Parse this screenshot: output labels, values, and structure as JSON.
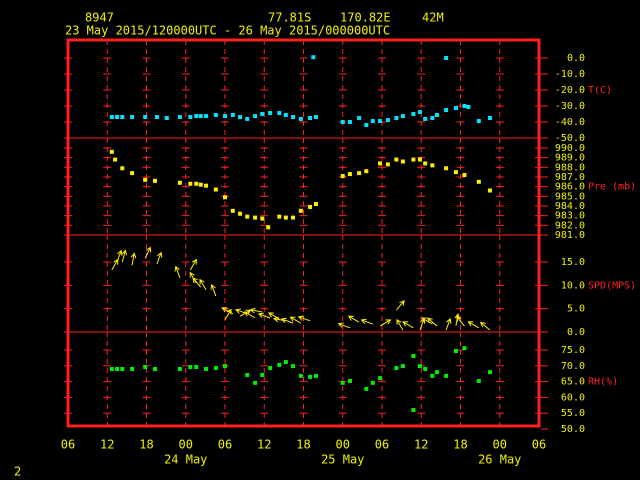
{
  "header": {
    "station": "8947",
    "lat": "77.81S",
    "lon": "170.82E",
    "elev": "42M",
    "period": "23 May 2015/120000UTC - 26 May 2015/000000UTC"
  },
  "footer": "2",
  "chart_data": [
    {
      "type": "scatter",
      "ylabel": "T(C)",
      "color": "#00e5ff",
      "xlim": [
        0,
        72
      ],
      "ylim": [
        -50,
        11.25
      ],
      "yticks": [
        {
          "value": 0,
          "label": "0.0"
        },
        {
          "value": -10,
          "label": "-10.0"
        },
        {
          "value": -20,
          "label": "-20.0"
        },
        {
          "value": -30,
          "label": "-30.0"
        },
        {
          "value": -40,
          "label": "-40.0"
        },
        {
          "value": -50,
          "label": "-50.0"
        }
      ],
      "x": [
        6.7,
        7.5,
        8.3,
        9.8,
        11.8,
        13.6,
        15.1,
        17.1,
        18.7,
        19.6,
        20.3,
        21.1,
        22.6,
        24.0,
        25.2,
        26.3,
        27.4,
        28.6,
        29.7,
        30.9,
        32.3,
        33.3,
        34.4,
        35.6,
        37.0,
        37.9,
        37.5,
        42.0,
        43.1,
        44.5,
        45.6,
        46.6,
        47.7,
        48.9,
        50.2,
        51.2,
        52.8,
        53.8,
        54.6,
        55.7,
        56.4,
        57.8,
        59.3,
        60.6,
        61.2,
        62.8,
        64.5,
        57.8
      ],
      "values": [
        -36.9,
        -36.9,
        -36.9,
        -36.9,
        -36.9,
        -36.9,
        -37.5,
        -36.9,
        -36.9,
        -36.3,
        -36.3,
        -36.3,
        -35.6,
        -36.3,
        -35.6,
        -36.9,
        -38.1,
        -36.3,
        -35.0,
        -34.4,
        -34.4,
        -35.6,
        -36.9,
        -38.1,
        -37.5,
        -36.9,
        0.5,
        -40,
        -40,
        -37.5,
        -41.9,
        -39.4,
        -39.4,
        -38.8,
        -37.5,
        -36.3,
        -35,
        -33.8,
        -38.1,
        -37.5,
        -35.6,
        -32.5,
        -31.3,
        -30,
        -30.6,
        -39.4,
        -37.5,
        0
      ]
    },
    {
      "type": "scatter",
      "ylabel": "Pre (mb)",
      "color": "#ffee00",
      "xlim": [
        0,
        72
      ],
      "ylim": [
        981,
        991.03
      ],
      "yticks": [
        {
          "value": 990,
          "label": "990.0"
        },
        {
          "value": 989,
          "label": "989.0"
        },
        {
          "value": 988,
          "label": "988.0"
        },
        {
          "value": 987,
          "label": "987.0"
        },
        {
          "value": 986,
          "label": "986.0"
        },
        {
          "value": 985,
          "label": "985.0"
        },
        {
          "value": 984,
          "label": "984.0"
        },
        {
          "value": 983,
          "label": "983.0"
        },
        {
          "value": 982,
          "label": "982.0"
        },
        {
          "value": 981,
          "label": "981.0"
        }
      ],
      "x": [
        6.7,
        7.2,
        8.3,
        9.8,
        11.8,
        13.3,
        17.1,
        18.7,
        19.6,
        20.3,
        21.1,
        22.6,
        24.0,
        25.2,
        26.3,
        27.4,
        28.6,
        29.7,
        30.6,
        32.3,
        33.3,
        34.4,
        35.6,
        37.0,
        37.9,
        42.0,
        43.1,
        44.5,
        45.6,
        47.7,
        48.9,
        50.2,
        51.2,
        52.8,
        53.8,
        54.6,
        55.7,
        57.8,
        59.3,
        60.6,
        62.8,
        64.5
      ],
      "values": [
        989.6,
        988.8,
        987.9,
        987.4,
        986.7,
        986.6,
        986.4,
        986.3,
        986.3,
        986.2,
        986.1,
        985.7,
        984.9,
        983.5,
        983.2,
        982.9,
        982.8,
        982.7,
        981.8,
        982.9,
        982.8,
        982.8,
        983.5,
        983.9,
        984.2,
        987.1,
        987.3,
        987.4,
        987.6,
        988.4,
        988.3,
        988.8,
        988.6,
        988.8,
        988.8,
        988.4,
        988.2,
        987.9,
        987.5,
        987.2,
        986.5,
        985.6
      ]
    },
    {
      "type": "vector",
      "ylabel": "SPD(MPS)",
      "color": "#ffee00",
      "xlim": [
        0,
        72
      ],
      "ylim": [
        0,
        20.79
      ],
      "yticks": [
        {
          "value": 15,
          "label": "15.0"
        },
        {
          "value": 10,
          "label": "10.0"
        },
        {
          "value": 5,
          "label": "5.0"
        },
        {
          "value": 0,
          "label": "0.0"
        }
      ],
      "x": [
        6.7,
        7.5,
        8.3,
        9.8,
        11.8,
        13.6,
        17.1,
        18.7,
        19.6,
        20.3,
        21.1,
        22.6,
        24.0,
        25.2,
        26.3,
        27.4,
        28.6,
        29.7,
        30.9,
        32.3,
        33.3,
        34.4,
        35.6,
        37.0,
        43.1,
        44.5,
        46.6,
        47.7,
        50.2,
        51.2,
        52.8,
        53.8,
        55.7,
        56.4,
        57.8,
        59.3,
        60.6,
        62.8,
        64.5
      ],
      "values": [
        13.3,
        15,
        15,
        14.3,
        15.8,
        14.6,
        11.6,
        13.3,
        10.5,
        9.6,
        9,
        7.7,
        2.6,
        3.9,
        3.4,
        3.9,
        3,
        4.3,
        3,
        2.8,
        2.4,
        1.9,
        1.9,
        2.4,
        0.9,
        2.1,
        1.7,
        1.3,
        4.7,
        0.4,
        0.9,
        0.4,
        1.7,
        1.3,
        0.4,
        1.3,
        1.3,
        0.9,
        0.4
      ],
      "direction": [
        30,
        20,
        15,
        10,
        25,
        20,
        340,
        30,
        330,
        320,
        330,
        340,
        30,
        300,
        60,
        290,
        300,
        280,
        290,
        300,
        280,
        290,
        300,
        290,
        290,
        300,
        290,
        60,
        40,
        330,
        300,
        20,
        300,
        310,
        20,
        10,
        320,
        300,
        310
      ]
    },
    {
      "type": "scatter",
      "ylabel": "RH(%)",
      "color": "#00ee00",
      "xlim": [
        0,
        72
      ],
      "ylim": [
        50.95,
        80.7
      ],
      "yticks": [
        {
          "value": 75,
          "label": "75.0"
        },
        {
          "value": 70,
          "label": "70.0"
        },
        {
          "value": 65,
          "label": "65.0"
        },
        {
          "value": 60,
          "label": "60.0"
        },
        {
          "value": 55,
          "label": "55.0"
        },
        {
          "value": 50,
          "label": "50.0"
        }
      ],
      "x": [
        6.7,
        7.5,
        8.3,
        9.8,
        11.8,
        13.3,
        17.1,
        18.7,
        19.6,
        21.1,
        22.6,
        24.0,
        27.4,
        28.6,
        29.7,
        30.9,
        32.3,
        33.3,
        34.4,
        35.6,
        37.0,
        37.9,
        42.0,
        43.1,
        45.6,
        46.6,
        47.7,
        50.2,
        51.2,
        52.8,
        53.8,
        54.6,
        55.7,
        56.4,
        57.8,
        59.3,
        60.6,
        62.8,
        64.5,
        52.8
      ],
      "values": [
        69.0,
        69.0,
        69.0,
        69.0,
        69.6,
        69.0,
        69.0,
        69.6,
        69.6,
        69.0,
        69.3,
        69.9,
        67.1,
        64.6,
        67.1,
        69.3,
        70.3,
        71.2,
        69.9,
        66.8,
        66.5,
        66.8,
        64.6,
        65.2,
        62.7,
        64.6,
        66.1,
        69.3,
        69.9,
        73.1,
        69.9,
        69.0,
        66.8,
        68.0,
        66.8,
        74.7,
        75.6,
        65.2,
        68.0,
        56.0
      ],
      "xticks": [
        {
          "value": 0,
          "label": "06"
        },
        {
          "value": 6,
          "label": "12"
        },
        {
          "value": 12,
          "label": "18"
        },
        {
          "value": 18,
          "label": "00"
        },
        {
          "value": 24,
          "label": "06"
        },
        {
          "value": 30,
          "label": "12"
        },
        {
          "value": 36,
          "label": "18"
        },
        {
          "value": 42,
          "label": "00"
        },
        {
          "value": 48,
          "label": "06"
        },
        {
          "value": 54,
          "label": "12"
        },
        {
          "value": 60,
          "label": "18"
        },
        {
          "value": 66,
          "label": "00"
        },
        {
          "value": 72,
          "label": "06"
        }
      ],
      "date_labels": [
        {
          "value": 18,
          "label": "24 May"
        },
        {
          "value": 42,
          "label": "25 May"
        },
        {
          "value": 66,
          "label": "26 May"
        }
      ]
    }
  ]
}
